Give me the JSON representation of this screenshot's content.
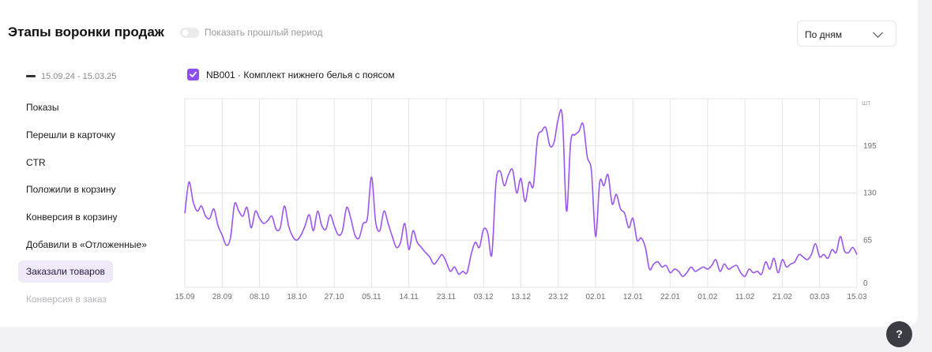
{
  "header": {
    "title": "Этапы воронки продаж",
    "toggle_label": "Показать прошлый период",
    "period_select": "По дням"
  },
  "legend": {
    "date_range": "15.09.24 - 15.03.25"
  },
  "sidebar": {
    "items": [
      {
        "label": "Показы"
      },
      {
        "label": "Перешли в карточку"
      },
      {
        "label": "CTR"
      },
      {
        "label": "Положили в корзину"
      },
      {
        "label": "Конверсия в корзину"
      },
      {
        "label": "Добавили в «Отложенные»"
      },
      {
        "label": "Заказали товаров"
      },
      {
        "label": "Конверсия в заказ"
      }
    ],
    "active_index": 6
  },
  "series_toggle": {
    "label": "NB001 · Комплект нижнего белья с поясом",
    "checked": true
  },
  "help_label": "?",
  "colors": {
    "accent": "#8d4ff0",
    "active_bg": "#efe9f8",
    "line": "#9a55ee"
  },
  "chart_data": {
    "type": "line",
    "unit": "шт",
    "y_ticks": [
      0,
      65,
      130,
      195
    ],
    "ylim": [
      0,
      260
    ],
    "grid": true,
    "x_tick_labels": [
      "15.09",
      "28.09",
      "08.10",
      "18.10",
      "27.10",
      "05.11",
      "14.11",
      "23.11",
      "03.12",
      "13.12",
      "23.12",
      "02.01",
      "12.01",
      "22.01",
      "01.02",
      "11.02",
      "21.02",
      "03.03",
      "15.03"
    ],
    "series": [
      {
        "name": "NB001 · Комплект нижнего белья с поясом",
        "values": [
          102,
          145,
          118,
          105,
          112,
          98,
          95,
          108,
          85,
          72,
          58,
          68,
          115,
          105,
          98,
          110,
          82,
          105,
          95,
          88,
          92,
          98,
          80,
          82,
          112,
          85,
          70,
          65,
          72,
          85,
          100,
          78,
          105,
          85,
          80,
          100,
          85,
          72,
          78,
          110,
          95,
          72,
          68,
          88,
          95,
          152,
          90,
          78,
          105,
          88,
          70,
          55,
          62,
          88,
          52,
          78,
          62,
          55,
          48,
          42,
          32,
          38,
          45,
          35,
          22,
          28,
          18,
          22,
          20,
          45,
          62,
          55,
          80,
          75,
          45,
          145,
          160,
          140,
          155,
          162,
          130,
          150,
          118,
          145,
          140,
          205,
          215,
          220,
          195,
          200,
          232,
          235,
          105,
          200,
          210,
          215,
          225,
          180,
          160,
          70,
          145,
          140,
          155,
          115,
          128,
          108,
          102,
          82,
          95,
          65,
          68,
          55,
          25,
          32,
          35,
          28,
          30,
          20,
          25,
          22,
          15,
          20,
          28,
          22,
          25,
          28,
          25,
          30,
          38,
          22,
          32,
          25,
          28,
          30,
          20,
          15,
          25,
          20,
          22,
          18,
          35,
          25,
          40,
          20,
          38,
          28,
          32,
          35,
          45,
          42,
          38,
          45,
          60,
          42,
          45,
          40,
          52,
          48,
          70,
          50,
          48,
          55,
          45
        ]
      }
    ]
  }
}
